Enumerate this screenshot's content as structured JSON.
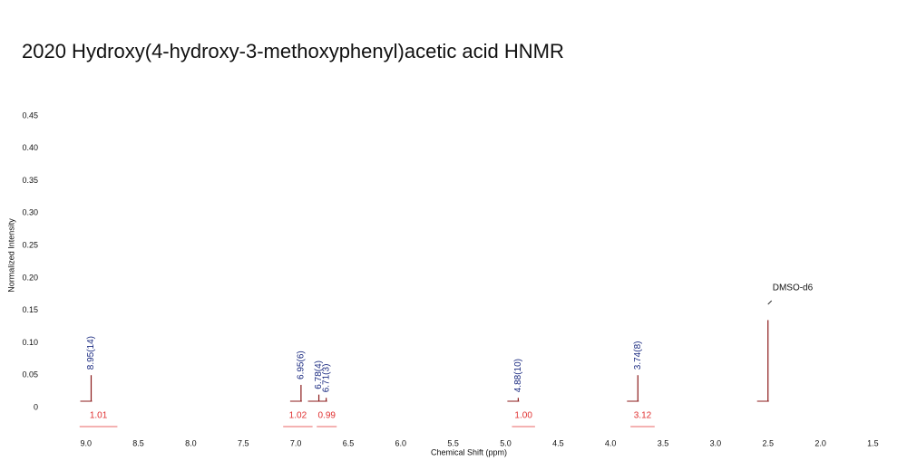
{
  "chart_data": {
    "type": "nmr",
    "title": "2020 Hydroxy(4-hydroxy-3-methoxyphenyl)acetic acid HNMR",
    "xlabel": "Chemical Shift (ppm)",
    "ylabel": "Normalized Intensity",
    "xlim": [
      9.3,
      1.4
    ],
    "ylim": [
      0,
      0.45
    ],
    "xticks": [
      {
        "value": 9.0,
        "label": "9.0"
      },
      8.5,
      {
        "value": 8.0,
        "label": "8.0"
      },
      7.5,
      {
        "value": 7.0,
        "label": "7.0"
      },
      6.5,
      {
        "value": 6.0,
        "label": "6.0"
      },
      5.5,
      {
        "value": 5.0,
        "label": "5.0"
      },
      4.5,
      {
        "value": 4.0,
        "label": "4.0"
      },
      3.5,
      {
        "value": 3.0,
        "label": "3.0"
      },
      2.5,
      {
        "value": 2.0,
        "label": "2.0"
      },
      1.5
    ],
    "yticks": [
      0,
      0.05,
      {
        "value": 0.1,
        "label": "0.10"
      },
      0.15,
      {
        "value": 0.2,
        "label": "0.20"
      },
      0.25,
      {
        "value": 0.3,
        "label": "0.30"
      },
      0.35,
      {
        "value": 0.4,
        "label": "0.40"
      },
      0.45
    ],
    "color": "#8b1a1a",
    "peaks": {
      "x": [
        8.95,
        6.95,
        6.78,
        6.71,
        4.88,
        3.74,
        2.5
      ],
      "values": [
        0.05,
        0.035,
        0.02,
        0.015,
        0.015,
        0.05,
        0.135
      ],
      "labels": [
        "8.95(14)",
        "6.95(6)",
        "6.78(4)",
        "6.71(3)",
        "4.88(10)",
        "3.74(8)",
        null
      ],
      "label_color": "#1a2a80"
    },
    "annotation": {
      "text": "DMSO-d6",
      "x": 2.5
    },
    "integrals": {
      "from": [
        9.06,
        7.12,
        6.8,
        4.94,
        3.81
      ],
      "to": [
        8.7,
        6.84,
        6.61,
        4.72,
        3.58
      ],
      "values": [
        1.01,
        1.02,
        0.99,
        1.0,
        3.12
      ],
      "value_labels": [
        "1.01",
        "1.02",
        "0.99",
        "1.00",
        "3.12"
      ],
      "color": "#e03030"
    }
  }
}
